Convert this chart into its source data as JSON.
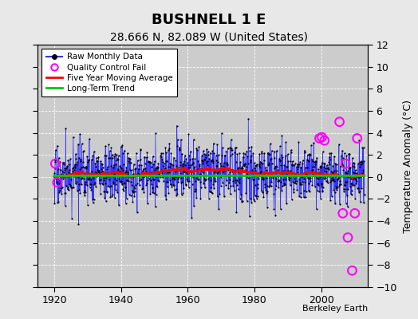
{
  "title": "BUSHNELL 1 E",
  "subtitle": "28.666 N, 82.089 W (United States)",
  "ylabel": "Temperature Anomaly (°C)",
  "credit": "Berkeley Earth",
  "ylim": [
    -10,
    12
  ],
  "xlim": [
    1915,
    2014
  ],
  "xticks": [
    1920,
    1940,
    1960,
    1980,
    2000
  ],
  "yticks": [
    -10,
    -8,
    -6,
    -4,
    -2,
    0,
    2,
    4,
    6,
    8,
    10,
    12
  ],
  "fig_bg_color": "#e8e8e8",
  "plot_bg_color": "#cccccc",
  "grid_color": "#ffffff",
  "raw_color": "#3333ff",
  "dot_color": "#000000",
  "ma_color": "#ff0000",
  "trend_color": "#00cc00",
  "qc_color": "#ff00ff",
  "legend_items": [
    "Raw Monthly Data",
    "Quality Control Fail",
    "Five Year Moving Average",
    "Long-Term Trend"
  ],
  "title_fontsize": 13,
  "subtitle_fontsize": 10,
  "ylabel_fontsize": 9,
  "tick_fontsize": 9,
  "credit_fontsize": 8
}
